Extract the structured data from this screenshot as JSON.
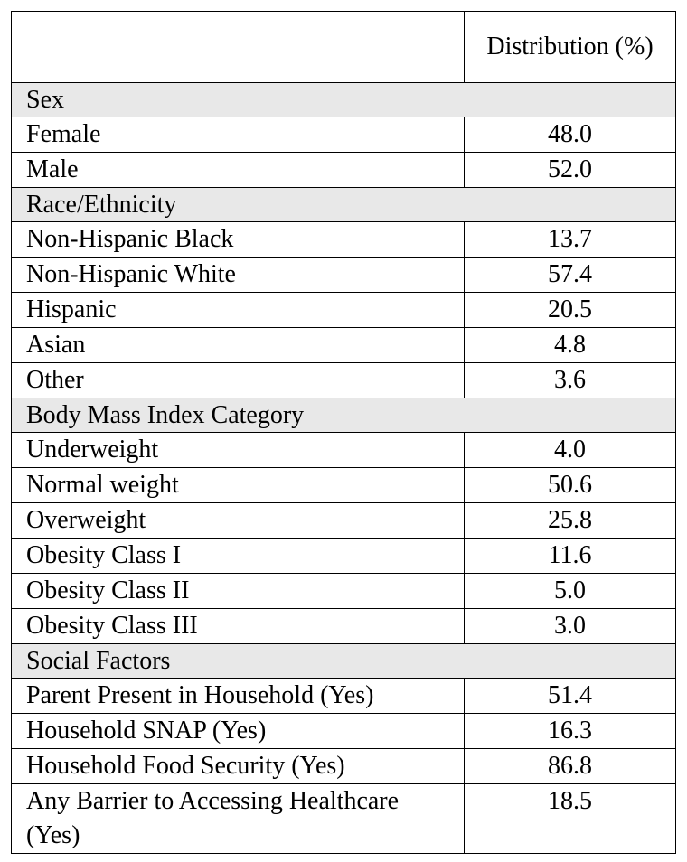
{
  "table": {
    "header": {
      "label_column": "",
      "value_column": "Distribution (%)"
    },
    "sections": [
      {
        "title": "Sex",
        "rows": [
          {
            "label": "Female",
            "value": "48.0"
          },
          {
            "label": "Male",
            "value": "52.0"
          }
        ]
      },
      {
        "title": "Race/Ethnicity",
        "rows": [
          {
            "label": "Non-Hispanic Black",
            "value": "13.7"
          },
          {
            "label": "Non-Hispanic White",
            "value": "57.4"
          },
          {
            "label": "Hispanic",
            "value": "20.5"
          },
          {
            "label": "Asian",
            "value": "4.8"
          },
          {
            "label": "Other",
            "value": "3.6"
          }
        ]
      },
      {
        "title": "Body Mass Index Category",
        "rows": [
          {
            "label": "Underweight",
            "value": "4.0"
          },
          {
            "label": "Normal weight",
            "value": "50.6"
          },
          {
            "label": "Overweight",
            "value": "25.8"
          },
          {
            "label": "Obesity Class I",
            "value": "11.6"
          },
          {
            "label": "Obesity Class II",
            "value": "5.0"
          },
          {
            "label": "Obesity Class III",
            "value": "3.0"
          }
        ]
      },
      {
        "title": "Social Factors",
        "rows": [
          {
            "label": "Parent Present in Household (Yes)",
            "value": "51.4"
          },
          {
            "label": "Household SNAP (Yes)",
            "value": "16.3"
          },
          {
            "label": "Household Food Security (Yes)",
            "value": "86.8"
          },
          {
            "label": "Any Barrier to Accessing Healthcare (Yes)",
            "value": "18.5"
          }
        ]
      }
    ]
  },
  "colors": {
    "section_background": "#e8e8e8",
    "border": "#000000",
    "text": "#000000"
  }
}
